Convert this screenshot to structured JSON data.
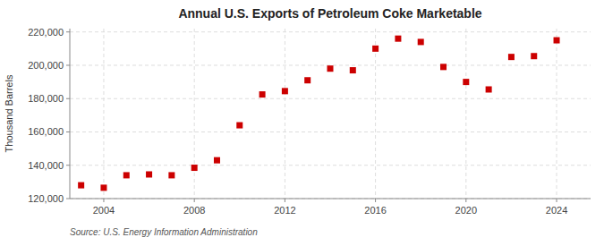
{
  "chart_data": {
    "type": "scatter",
    "title": "Annual U.S. Exports of Petroleum Coke Marketable",
    "y_label": "Thousand Barrels",
    "annotations": [
      "Source: U.S. Energy Information Administration"
    ],
    "x": [
      2003,
      2004,
      2005,
      2006,
      2007,
      2008,
      2009,
      2010,
      2011,
      2012,
      2013,
      2014,
      2015,
      2016,
      2017,
      2018,
      2019,
      2020,
      2021,
      2022,
      2023,
      2024
    ],
    "values": [
      128000,
      126500,
      134000,
      134500,
      134000,
      138500,
      143000,
      164000,
      182500,
      184500,
      191000,
      198000,
      197000,
      210000,
      216000,
      214000,
      199000,
      190000,
      185500,
      205000,
      205500,
      215000
    ],
    "xlim": [
      2002.5,
      2025.5
    ],
    "xticks": [
      2004,
      2008,
      2012,
      2016,
      2020,
      2024
    ],
    "ylim": [
      120000,
      222000
    ],
    "yticks": [
      {
        "value": 120000,
        "label": "120,000"
      },
      {
        "value": 140000,
        "label": "140,000"
      },
      {
        "value": 160000,
        "label": "160,000"
      },
      {
        "value": 180000,
        "label": "180,000"
      },
      {
        "value": 200000,
        "label": "200,000"
      },
      {
        "value": 220000,
        "label": "220,000"
      }
    ],
    "color": "#cc0000",
    "marker": "square",
    "grid": true
  }
}
